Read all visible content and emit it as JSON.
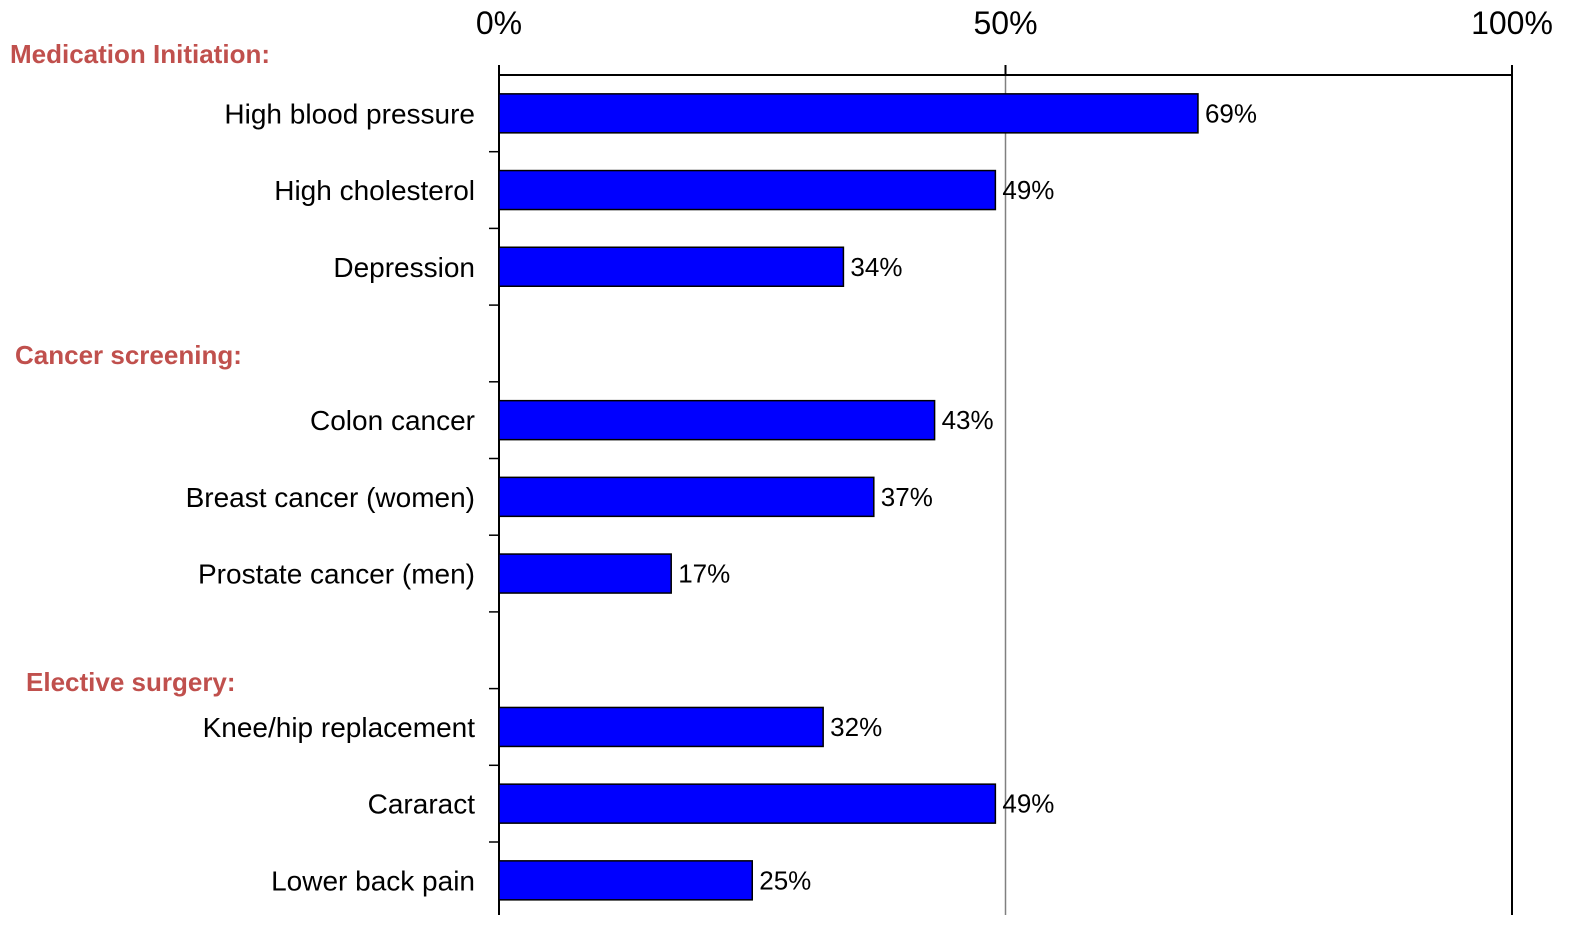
{
  "chart_data": {
    "type": "bar",
    "orientation": "horizontal",
    "xlim": [
      0,
      100
    ],
    "x_ticks": [
      "0%",
      "50%",
      "100%"
    ],
    "x_tick_values": [
      0,
      50,
      100
    ],
    "x_axis_position": "top",
    "grid": "vertical gridlines at 50% and 100%",
    "colors": {
      "bar": "#0000ff",
      "bar_border": "#000000",
      "group_label": "#c0504d",
      "gridline": "#808080",
      "axis": "#000000"
    },
    "groups": [
      {
        "label": "Medication Initiation:",
        "items": [
          {
            "category": "High blood pressure",
            "value": 69,
            "label": "69%"
          },
          {
            "category": "High cholesterol",
            "value": 49,
            "label": "49%"
          },
          {
            "category": "Depression",
            "value": 34,
            "label": "34%"
          }
        ]
      },
      {
        "label": "Cancer screening:",
        "items": [
          {
            "category": "Colon cancer",
            "value": 43,
            "label": "43%"
          },
          {
            "category": "Breast cancer (women)",
            "value": 37,
            "label": "37%"
          },
          {
            "category": "Prostate cancer (men)",
            "value": 17,
            "label": "17%"
          }
        ]
      },
      {
        "label": "Elective surgery:",
        "items": [
          {
            "category": "Knee/hip replacement",
            "value": 32,
            "label": "32%"
          },
          {
            "category": "Cararact",
            "value": 49,
            "label": "49%"
          },
          {
            "category": "Lower back pain",
            "value": 25,
            "label": "25%"
          }
        ]
      }
    ]
  }
}
